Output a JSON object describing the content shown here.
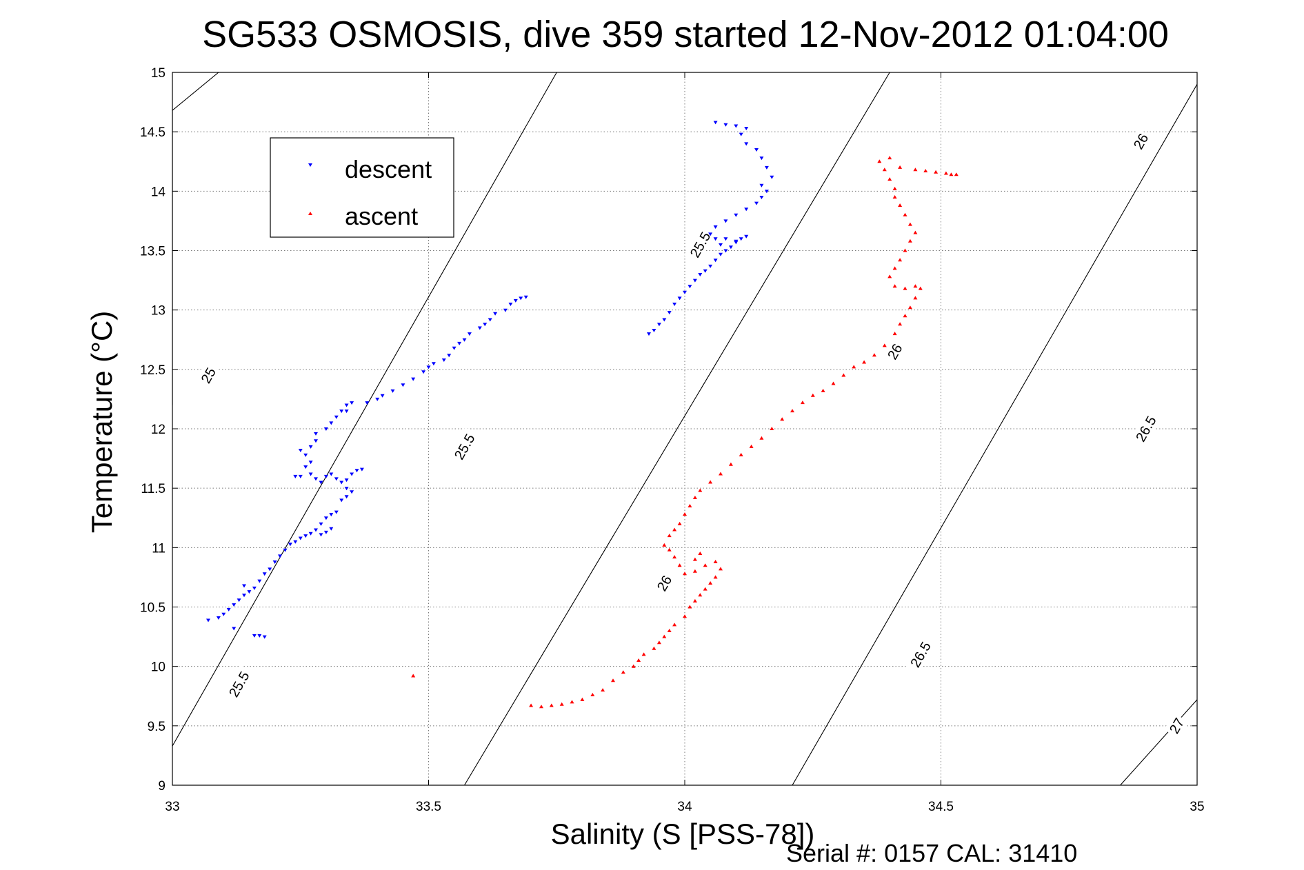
{
  "chart_data": {
    "type": "scatter",
    "title": "SG533 OSMOSIS, dive 359 started 12-Nov-2012 01:04:00",
    "xlabel": "Salinity (S [PSS-78])",
    "ylabel": "Temperature (°C)",
    "footer": "Serial #: 0157  CAL: 31410",
    "xlim": [
      33,
      35
    ],
    "ylim": [
      9,
      15
    ],
    "xticks": [
      "33",
      "33.5",
      "34",
      "34.5",
      "35"
    ],
    "yticks": [
      "9",
      "9.5",
      "10",
      "10.5",
      "11",
      "11.5",
      "12",
      "12.5",
      "13",
      "13.5",
      "14",
      "14.5",
      "15"
    ],
    "grid": true,
    "legend": {
      "placement": "top-left"
    },
    "colors": {
      "descent": "#0000ff",
      "ascent": "#ff0000",
      "contour": "#000000"
    },
    "series": [
      {
        "name": "descent",
        "marker": "down-triangle",
        "color": "#0000ff",
        "points": [
          [
            33.07,
            10.39
          ],
          [
            33.09,
            10.41
          ],
          [
            33.1,
            10.44
          ],
          [
            33.11,
            10.48
          ],
          [
            33.12,
            10.52
          ],
          [
            33.13,
            10.56
          ],
          [
            33.14,
            10.6
          ],
          [
            33.15,
            10.63
          ],
          [
            33.14,
            10.68
          ],
          [
            33.16,
            10.66
          ],
          [
            33.17,
            10.72
          ],
          [
            33.18,
            10.78
          ],
          [
            33.19,
            10.82
          ],
          [
            33.2,
            10.88
          ],
          [
            33.21,
            10.93
          ],
          [
            33.22,
            10.98
          ],
          [
            33.23,
            11.03
          ],
          [
            33.24,
            11.05
          ],
          [
            33.25,
            11.08
          ],
          [
            33.26,
            11.1
          ],
          [
            33.27,
            11.12
          ],
          [
            33.28,
            11.15
          ],
          [
            33.29,
            11.2
          ],
          [
            33.3,
            11.25
          ],
          [
            33.31,
            11.28
          ],
          [
            33.32,
            11.3
          ],
          [
            33.3,
            11.13
          ],
          [
            33.31,
            11.16
          ],
          [
            33.29,
            11.11
          ],
          [
            33.33,
            11.4
          ],
          [
            33.34,
            11.43
          ],
          [
            33.35,
            11.47
          ],
          [
            33.34,
            11.5
          ],
          [
            33.33,
            11.55
          ],
          [
            33.32,
            11.58
          ],
          [
            33.31,
            11.62
          ],
          [
            33.3,
            11.6
          ],
          [
            33.29,
            11.55
          ],
          [
            33.28,
            11.58
          ],
          [
            33.27,
            11.62
          ],
          [
            33.25,
            11.6
          ],
          [
            33.24,
            11.6
          ],
          [
            33.26,
            11.68
          ],
          [
            33.27,
            11.72
          ],
          [
            33.26,
            11.78
          ],
          [
            33.25,
            11.82
          ],
          [
            33.27,
            11.85
          ],
          [
            33.28,
            11.9
          ],
          [
            33.28,
            11.96
          ],
          [
            33.3,
            12.0
          ],
          [
            33.31,
            12.05
          ],
          [
            33.32,
            12.1
          ],
          [
            33.33,
            12.15
          ],
          [
            33.34,
            12.2
          ],
          [
            33.35,
            12.22
          ],
          [
            33.34,
            12.15
          ],
          [
            33.36,
            11.65
          ],
          [
            33.37,
            11.66
          ],
          [
            33.35,
            11.62
          ],
          [
            33.34,
            11.57
          ],
          [
            33.38,
            12.22
          ],
          [
            33.4,
            12.25
          ],
          [
            33.41,
            12.28
          ],
          [
            33.43,
            12.32
          ],
          [
            33.45,
            12.37
          ],
          [
            33.47,
            12.42
          ],
          [
            33.49,
            12.48
          ],
          [
            33.5,
            12.52
          ],
          [
            33.51,
            12.55
          ],
          [
            33.53,
            12.58
          ],
          [
            33.54,
            12.62
          ],
          [
            33.55,
            12.68
          ],
          [
            33.56,
            12.72
          ],
          [
            33.57,
            12.75
          ],
          [
            33.58,
            12.8
          ],
          [
            33.6,
            12.85
          ],
          [
            33.61,
            12.88
          ],
          [
            33.62,
            12.92
          ],
          [
            33.63,
            12.97
          ],
          [
            33.65,
            13.0
          ],
          [
            33.66,
            13.05
          ],
          [
            33.67,
            13.08
          ],
          [
            33.68,
            13.1
          ],
          [
            33.69,
            13.11
          ],
          [
            33.16,
            10.26
          ],
          [
            33.17,
            10.26
          ],
          [
            33.18,
            10.25
          ],
          [
            33.12,
            10.32
          ],
          [
            33.93,
            12.8
          ],
          [
            33.94,
            12.83
          ],
          [
            33.95,
            12.88
          ],
          [
            33.96,
            12.92
          ],
          [
            33.97,
            12.98
          ],
          [
            33.98,
            13.05
          ],
          [
            33.99,
            13.1
          ],
          [
            34.0,
            13.15
          ],
          [
            34.01,
            13.2
          ],
          [
            34.02,
            13.25
          ],
          [
            34.03,
            13.3
          ],
          [
            34.04,
            13.33
          ],
          [
            34.05,
            13.37
          ],
          [
            34.06,
            13.42
          ],
          [
            34.07,
            13.47
          ],
          [
            34.08,
            13.5
          ],
          [
            34.09,
            13.53
          ],
          [
            34.1,
            13.57
          ],
          [
            34.11,
            13.6
          ],
          [
            34.12,
            13.62
          ],
          [
            34.07,
            13.55
          ],
          [
            34.06,
            13.6
          ],
          [
            34.08,
            13.6
          ],
          [
            34.1,
            13.58
          ],
          [
            34.05,
            13.64
          ],
          [
            34.06,
            13.7
          ],
          [
            34.08,
            13.75
          ],
          [
            34.1,
            13.8
          ],
          [
            34.12,
            13.85
          ],
          [
            34.14,
            13.9
          ],
          [
            34.15,
            13.95
          ],
          [
            34.16,
            14.0
          ],
          [
            34.15,
            14.05
          ],
          [
            34.17,
            14.12
          ],
          [
            34.16,
            14.2
          ],
          [
            34.15,
            14.28
          ],
          [
            34.14,
            14.35
          ],
          [
            34.12,
            14.4
          ],
          [
            34.11,
            14.48
          ],
          [
            34.12,
            14.53
          ],
          [
            34.1,
            14.55
          ],
          [
            34.08,
            14.56
          ],
          [
            34.06,
            14.58
          ]
        ]
      },
      {
        "name": "ascent",
        "marker": "up-triangle",
        "color": "#ff0000",
        "points": [
          [
            33.7,
            9.67
          ],
          [
            33.72,
            9.66
          ],
          [
            33.74,
            9.67
          ],
          [
            33.76,
            9.68
          ],
          [
            33.78,
            9.7
          ],
          [
            33.8,
            9.72
          ],
          [
            33.82,
            9.76
          ],
          [
            33.84,
            9.8
          ],
          [
            33.86,
            9.88
          ],
          [
            33.88,
            9.95
          ],
          [
            33.9,
            10.0
          ],
          [
            33.91,
            10.05
          ],
          [
            33.92,
            10.1
          ],
          [
            33.94,
            10.15
          ],
          [
            33.95,
            10.2
          ],
          [
            33.96,
            10.25
          ],
          [
            33.97,
            10.3
          ],
          [
            33.98,
            10.35
          ],
          [
            34.0,
            10.42
          ],
          [
            34.01,
            10.5
          ],
          [
            34.02,
            10.55
          ],
          [
            34.03,
            10.6
          ],
          [
            34.04,
            10.65
          ],
          [
            34.05,
            10.7
          ],
          [
            34.06,
            10.75
          ],
          [
            34.07,
            10.82
          ],
          [
            34.06,
            10.88
          ],
          [
            34.04,
            10.85
          ],
          [
            34.02,
            10.8
          ],
          [
            34.0,
            10.78
          ],
          [
            33.99,
            10.85
          ],
          [
            33.98,
            10.92
          ],
          [
            33.97,
            10.98
          ],
          [
            33.96,
            11.02
          ],
          [
            33.97,
            11.1
          ],
          [
            33.98,
            11.15
          ],
          [
            33.99,
            11.2
          ],
          [
            34.0,
            11.28
          ],
          [
            34.01,
            11.35
          ],
          [
            34.02,
            11.42
          ],
          [
            34.03,
            11.48
          ],
          [
            34.05,
            11.55
          ],
          [
            34.07,
            11.62
          ],
          [
            34.09,
            11.7
          ],
          [
            34.11,
            11.78
          ],
          [
            34.13,
            11.85
          ],
          [
            34.15,
            11.92
          ],
          [
            34.17,
            12.0
          ],
          [
            34.19,
            12.08
          ],
          [
            34.21,
            12.15
          ],
          [
            34.23,
            12.22
          ],
          [
            34.25,
            12.28
          ],
          [
            34.27,
            12.32
          ],
          [
            34.29,
            12.38
          ],
          [
            34.31,
            12.45
          ],
          [
            34.33,
            12.52
          ],
          [
            34.35,
            12.56
          ],
          [
            34.37,
            12.62
          ],
          [
            34.39,
            12.7
          ],
          [
            34.41,
            12.8
          ],
          [
            34.42,
            12.88
          ],
          [
            34.43,
            12.95
          ],
          [
            34.44,
            13.02
          ],
          [
            34.45,
            13.1
          ],
          [
            34.46,
            13.18
          ],
          [
            34.45,
            13.2
          ],
          [
            34.43,
            13.18
          ],
          [
            34.41,
            13.2
          ],
          [
            34.4,
            13.28
          ],
          [
            34.41,
            13.35
          ],
          [
            34.42,
            13.42
          ],
          [
            34.43,
            13.5
          ],
          [
            34.44,
            13.58
          ],
          [
            34.45,
            13.65
          ],
          [
            34.44,
            13.72
          ],
          [
            34.43,
            13.8
          ],
          [
            34.42,
            13.88
          ],
          [
            34.41,
            13.95
          ],
          [
            34.41,
            14.02
          ],
          [
            34.4,
            14.1
          ],
          [
            34.39,
            14.18
          ],
          [
            34.38,
            14.25
          ],
          [
            34.4,
            14.28
          ],
          [
            34.42,
            14.2
          ],
          [
            34.45,
            14.18
          ],
          [
            34.47,
            14.17
          ],
          [
            34.49,
            14.16
          ],
          [
            34.51,
            14.15
          ],
          [
            34.52,
            14.14
          ],
          [
            34.53,
            14.14
          ],
          [
            33.47,
            9.92
          ],
          [
            34.03,
            10.95
          ],
          [
            34.02,
            10.9
          ]
        ]
      }
    ],
    "contours": [
      {
        "value": 25,
        "label": "25",
        "points": [
          [
            33.0,
            12.2
          ],
          [
            33.0,
            14.68
          ],
          [
            33.09,
            15.0
          ],
          [
            33.5,
            15.0
          ]
        ]
      },
      {
        "value": 25.5,
        "label": "25.5",
        "points": [
          [
            33.0,
            9.33
          ],
          [
            33.75,
            15.0
          ]
        ]
      },
      {
        "value": 26,
        "label": "26",
        "points": [
          [
            33.57,
            9.0
          ],
          [
            34.4,
            15.0
          ]
        ]
      },
      {
        "value": 26.5,
        "label": "26.5",
        "points": [
          [
            34.21,
            9.0
          ],
          [
            35.0,
            14.9
          ]
        ]
      },
      {
        "value": 27,
        "label": "27",
        "points": [
          [
            34.85,
            9.0
          ],
          [
            35.0,
            9.72
          ]
        ]
      }
    ],
    "contour_labels": [
      {
        "text": "25",
        "at": [
          33.07,
          12.45
        ]
      },
      {
        "text": "25.5",
        "at": [
          33.57,
          11.85
        ]
      },
      {
        "text": "25.5",
        "at": [
          33.13,
          9.85
        ]
      },
      {
        "text": "25.5",
        "at": [
          34.03,
          13.55
        ]
      },
      {
        "text": "26",
        "at": [
          33.96,
          10.7
        ]
      },
      {
        "text": "26",
        "at": [
          34.41,
          12.65
        ]
      },
      {
        "text": "26",
        "at": [
          34.89,
          14.42
        ]
      },
      {
        "text": "26.5",
        "at": [
          34.46,
          10.1
        ]
      },
      {
        "text": "26.5",
        "at": [
          34.9,
          12.0
        ]
      },
      {
        "text": "27",
        "at": [
          34.96,
          9.5
        ]
      }
    ]
  }
}
